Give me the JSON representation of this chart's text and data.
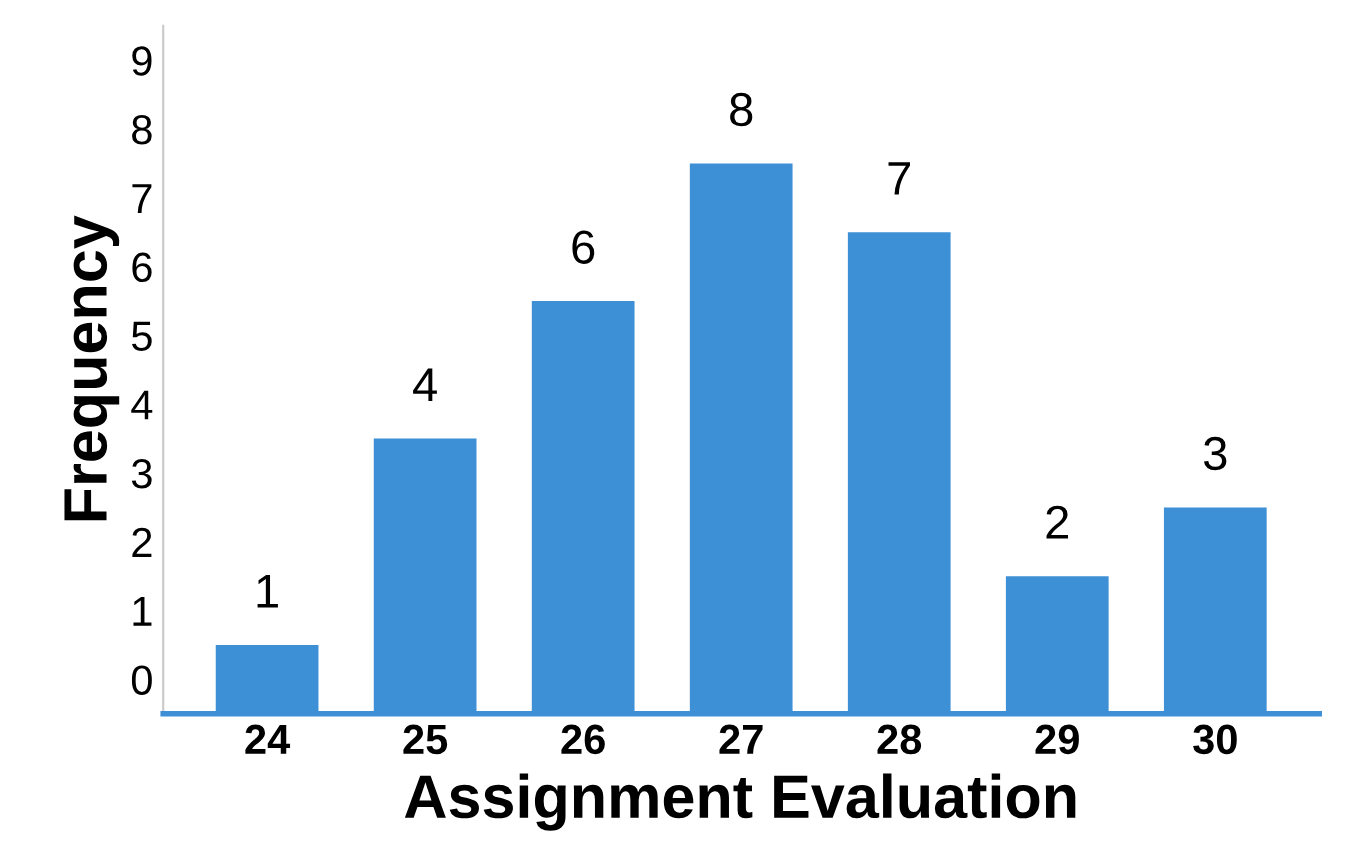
{
  "chart_data": {
    "type": "bar",
    "xlabel": "Assignment Evaluation",
    "ylabel": "Frequency",
    "categories": [
      "24",
      "25",
      "26",
      "27",
      "28",
      "29",
      "30"
    ],
    "values": [
      1,
      4,
      6,
      8,
      7,
      2,
      3
    ],
    "color": "#3d8fd6",
    "data_labels": true,
    "grid": false,
    "legend": false,
    "ylim": [
      0,
      10
    ],
    "yticks": [
      {
        "value": 0.5,
        "label": "0"
      },
      {
        "value": 1.5,
        "label": "1"
      },
      {
        "value": 2.5,
        "label": "2"
      },
      {
        "value": 3.5,
        "label": "3"
      },
      {
        "value": 4.5,
        "label": "4"
      },
      {
        "value": 5.5,
        "label": "5"
      },
      {
        "value": 6.5,
        "label": "6"
      },
      {
        "value": 7.5,
        "label": "7"
      },
      {
        "value": 8.5,
        "label": "8"
      },
      {
        "value": 9.5,
        "label": "9"
      }
    ]
  }
}
